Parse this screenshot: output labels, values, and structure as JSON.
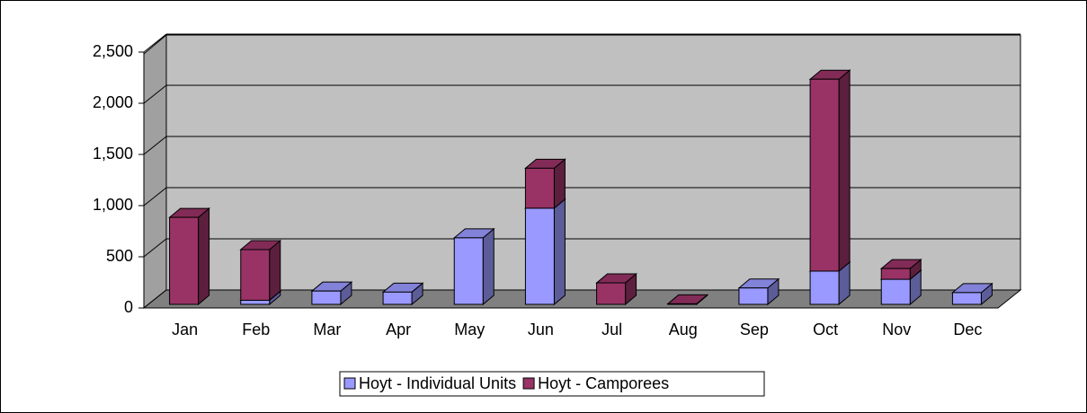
{
  "chart_data": {
    "type": "bar",
    "stacked": true,
    "categories": [
      "Jan",
      "Feb",
      "Mar",
      "Apr",
      "May",
      "Jun",
      "Jul",
      "Aug",
      "Sep",
      "Oct",
      "Nov",
      "Dec"
    ],
    "series": [
      {
        "name": "Hoyt - Individual Units",
        "color": "#9999ff",
        "values": [
          0,
          40,
          130,
          120,
          650,
          940,
          0,
          0,
          160,
          325,
          245,
          115
        ]
      },
      {
        "name": "Hoyt - Camporees",
        "color": "#993366",
        "values": [
          850,
          495,
          0,
          0,
          0,
          390,
          210,
          5,
          0,
          1875,
          105,
          0
        ]
      }
    ],
    "ylim": [
      0,
      2500
    ],
    "yticks": [
      {
        "value": 0,
        "label": "0"
      },
      {
        "value": 500,
        "label": "500"
      },
      {
        "value": 1000,
        "label": "1,000"
      },
      {
        "value": 1500,
        "label": "1,500"
      },
      {
        "value": 2000,
        "label": "2,000"
      },
      {
        "value": 2500,
        "label": "2,500"
      }
    ],
    "grid": true,
    "legend": "bottom"
  }
}
